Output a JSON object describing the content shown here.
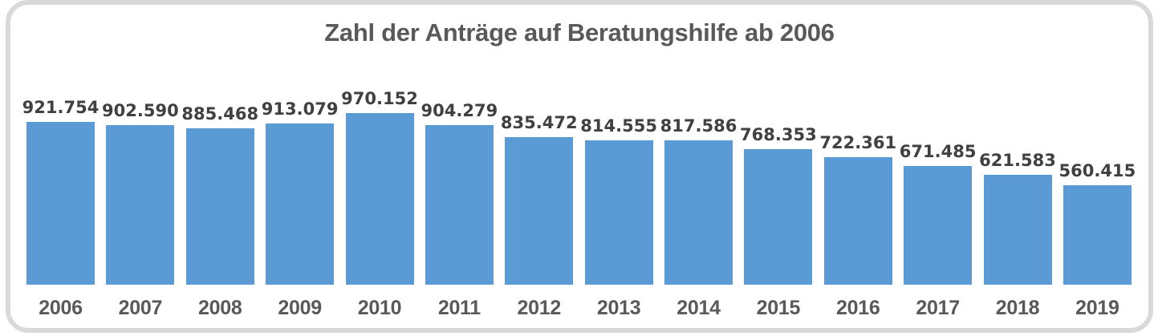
{
  "chart_data": {
    "type": "bar",
    "title": "Zahl der Anträge auf Beratungshilfe ab 2006",
    "categories": [
      "2006",
      "2007",
      "2008",
      "2009",
      "2010",
      "2011",
      "2012",
      "2013",
      "2014",
      "2015",
      "2016",
      "2017",
      "2018",
      "2019"
    ],
    "values": [
      921754,
      902590,
      885468,
      913079,
      970152,
      904279,
      835472,
      814555,
      817586,
      768353,
      722361,
      671485,
      621583,
      560415
    ],
    "value_labels": [
      "921.754",
      "902.590",
      "885.468",
      "913.079",
      "970.152",
      "904.279",
      "835.472",
      "814.555",
      "817.586",
      "768.353",
      "722.361",
      "671.485",
      "621.583",
      "560.415"
    ],
    "xlabel": "",
    "ylabel": "",
    "ylim": [
      0,
      970152
    ],
    "grid": false,
    "legend": false,
    "bar_color": "#5B9BD5",
    "value_label_color": "#404040",
    "tick_label_color": "#595959",
    "title_color": "#595959",
    "frame_border_color": "#D9D9D9"
  }
}
